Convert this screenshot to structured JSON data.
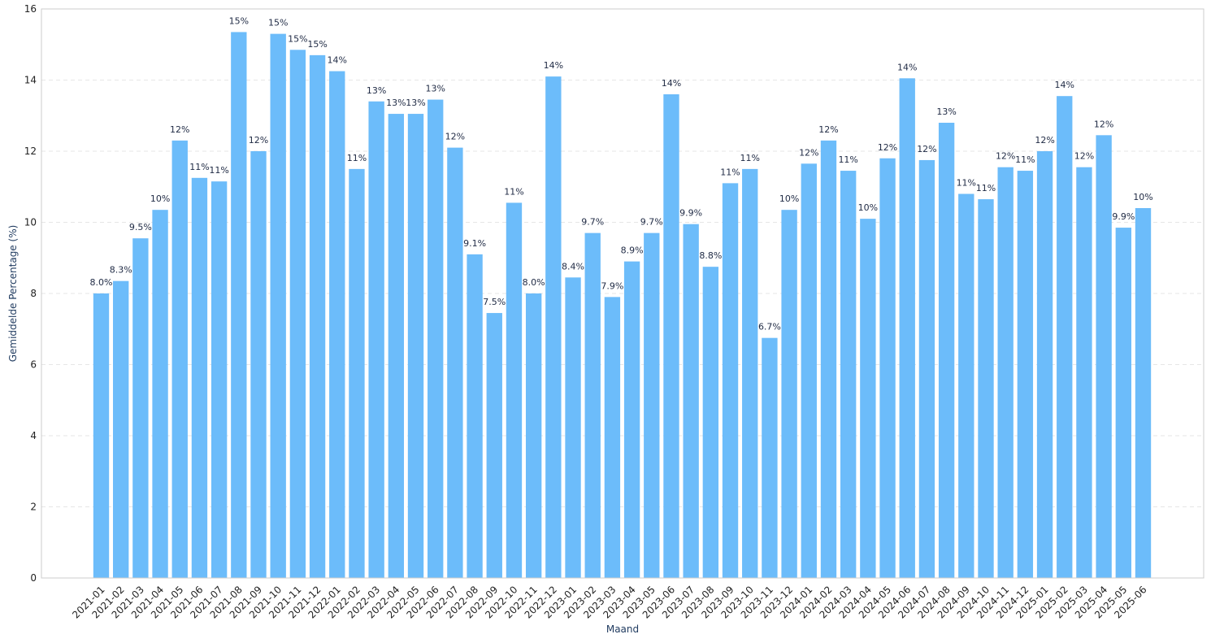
{
  "chart_data": {
    "type": "bar",
    "xlabel": "Maand",
    "ylabel": "Gemiddelde Percentage (%)",
    "ylim": [
      0,
      16
    ],
    "yticks": [
      0,
      2,
      4,
      6,
      8,
      10,
      12,
      14,
      16
    ],
    "grid": "horizontal dashed",
    "bar_color": "#6cbcfa",
    "categories": [
      "2021-01",
      "2021-02",
      "2021-03",
      "2021-04",
      "2021-05",
      "2021-06",
      "2021-07",
      "2021-08",
      "2021-09",
      "2021-10",
      "2021-11",
      "2021-12",
      "2022-01",
      "2022-02",
      "2022-03",
      "2022-04",
      "2022-05",
      "2022-06",
      "2022-07",
      "2022-08",
      "2022-09",
      "2022-10",
      "2022-11",
      "2022-12",
      "2023-01",
      "2023-02",
      "2023-03",
      "2023-04",
      "2023-05",
      "2023-06",
      "2023-07",
      "2023-08",
      "2023-09",
      "2023-10",
      "2023-11",
      "2023-12",
      "2024-01",
      "2024-02",
      "2024-03",
      "2024-04",
      "2024-05",
      "2024-06",
      "2024-07",
      "2024-08",
      "2024-09",
      "2024-10",
      "2024-11",
      "2024-12",
      "2025-01",
      "2025-02",
      "2025-03",
      "2025-04",
      "2025-05",
      "2025-06"
    ],
    "values": [
      8.0,
      8.35,
      9.55,
      10.35,
      12.3,
      11.25,
      11.15,
      15.35,
      12.0,
      15.3,
      14.85,
      14.7,
      14.25,
      11.5,
      13.4,
      13.05,
      13.05,
      13.45,
      12.1,
      9.1,
      7.45,
      10.55,
      8.0,
      14.1,
      8.45,
      9.7,
      7.9,
      8.9,
      9.7,
      13.6,
      9.95,
      8.75,
      11.1,
      11.5,
      6.75,
      10.35,
      11.65,
      12.3,
      11.45,
      10.1,
      11.8,
      14.05,
      11.75,
      12.8,
      10.8,
      10.65,
      11.55,
      11.45,
      12.0,
      13.55,
      11.55,
      12.45,
      9.85,
      10.4
    ],
    "labels": [
      "8.0%",
      "8.3%",
      "9.5%",
      "10%",
      "12%",
      "11%",
      "11%",
      "15%",
      "12%",
      "15%",
      "15%",
      "15%",
      "14%",
      "11%",
      "13%",
      "13%",
      "13%",
      "13%",
      "12%",
      "9.1%",
      "7.5%",
      "11%",
      "8.0%",
      "14%",
      "8.4%",
      "9.7%",
      "7.9%",
      "8.9%",
      "9.7%",
      "14%",
      "9.9%",
      "8.8%",
      "11%",
      "11%",
      "6.7%",
      "10%",
      "12%",
      "12%",
      "11%",
      "10%",
      "12%",
      "14%",
      "12%",
      "13%",
      "11%",
      "11%",
      "12%",
      "11%",
      "12%",
      "14%",
      "12%",
      "12%",
      "9.9%",
      "10%"
    ]
  }
}
